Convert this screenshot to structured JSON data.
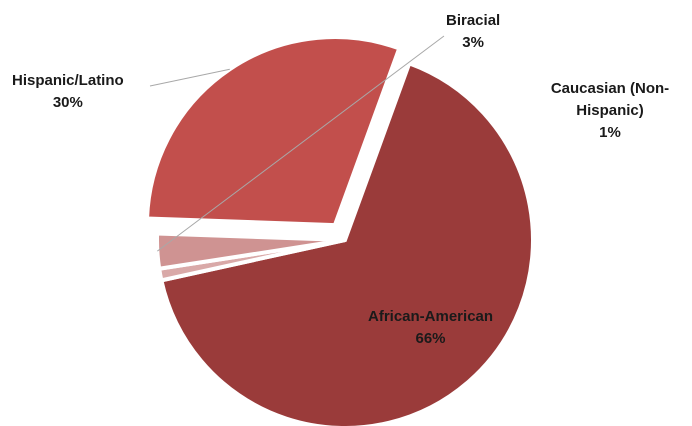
{
  "chart_data": {
    "type": "pie",
    "title": "",
    "categories": [
      "African-American",
      "Caucasian (Non-Hispanic)",
      "Biracial",
      "Hispanic/Latino"
    ],
    "values": [
      66,
      1,
      3,
      30
    ],
    "labels": [
      {
        "name": "African-American",
        "value": "66%"
      },
      {
        "name": "Caucasian (Non-Hispanic)",
        "value": "1%"
      },
      {
        "name": "Biracial",
        "value": "3%"
      },
      {
        "name": "Hispanic/Latino",
        "value": "30%"
      }
    ],
    "colors": [
      "#9a3b3a",
      "#d9a9a8",
      "#cf9392",
      "#c24f4c"
    ],
    "exploded": [
      false,
      false,
      false,
      true
    ],
    "legend": "none",
    "data_labels": "outside-with-leader-lines"
  }
}
